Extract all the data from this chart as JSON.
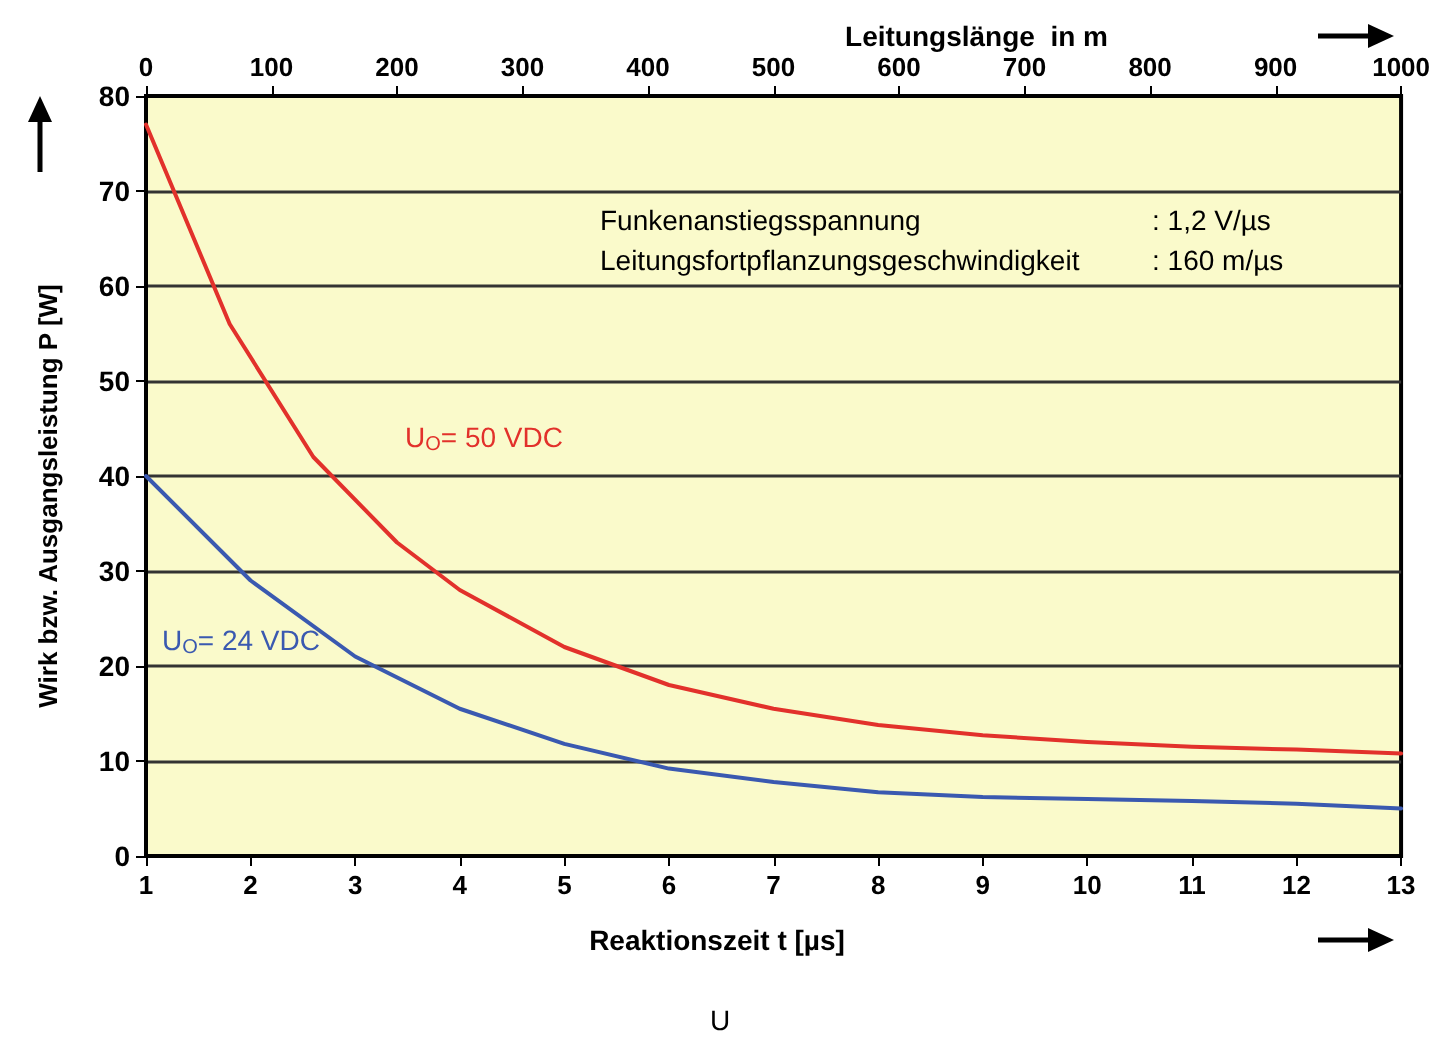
{
  "chart_data": {
    "type": "line",
    "xlabel": "Reaktionszeit t [µs]",
    "ylabel": "Wirk bzw. Ausgangsleistung P [W]",
    "x2label": "Leitungslänge  in m",
    "x": [
      1,
      1.8,
      2.6,
      3.4,
      4,
      5,
      6,
      7,
      8,
      9,
      10,
      11,
      12,
      13
    ],
    "series": [
      {
        "name": "U$_{O}$= 50 VDC",
        "color": "#e2312b",
        "values": [
          77,
          56,
          42,
          33,
          28,
          22,
          18,
          15.5,
          13.8,
          12.7,
          12,
          11.5,
          11.2,
          10.8
        ]
      },
      {
        "name": "U$_{O}$= 24 VDC",
        "color": "#3a59b0",
        "x": [
          1,
          2,
          3,
          4,
          5,
          6,
          7,
          8,
          9,
          10,
          11,
          12,
          13
        ],
        "values": [
          40,
          29,
          21,
          15.5,
          11.8,
          9.2,
          7.8,
          6.7,
          6.2,
          6,
          5.8,
          5.5,
          5
        ]
      }
    ],
    "xlim": [
      1,
      13
    ],
    "xticks": [
      1,
      2,
      3,
      4,
      5,
      6,
      7,
      8,
      9,
      10,
      11,
      12,
      13
    ],
    "x2lim": [
      0,
      1000
    ],
    "x2ticks": [
      0,
      100,
      200,
      300,
      400,
      500,
      600,
      700,
      800,
      900,
      1000
    ],
    "ylim": [
      0,
      80
    ],
    "yticks": [
      0,
      10,
      20,
      30,
      40,
      50,
      60,
      70,
      80
    ],
    "annotations": [
      "Funkenanstiegsspannung                               : 1,2 V/µs",
      "Leitungsfortpflanzungsgeschwindigkeit : 160 m/µs",
      "U"
    ],
    "grid": "y",
    "legend": false,
    "marker": "none",
    "line_style": "solid"
  }
}
